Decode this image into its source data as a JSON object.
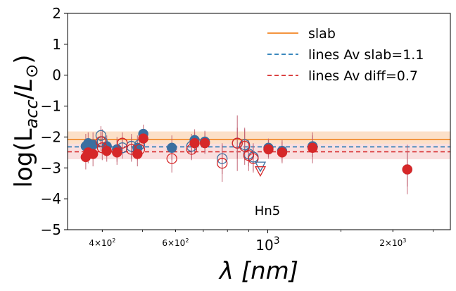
{
  "chart_data": {
    "type": "scatter",
    "x_scale": "log",
    "xlim": [
      330,
      2750
    ],
    "ylim": [
      -5,
      2
    ],
    "xlabel": "λ [nm]",
    "ylabel_parts": {
      "pre": "log(L",
      "sub": "acc",
      "mid": "/",
      "L": "L",
      "odot": "⊙",
      "close": ")"
    },
    "yticks": [
      "2",
      "1",
      "0",
      "−1",
      "−2",
      "−3",
      "−4",
      "−5"
    ],
    "ytick_values": [
      2,
      1,
      0,
      -1,
      -2,
      -3,
      -4,
      -5
    ],
    "xticks": [
      {
        "value": 400,
        "base": "4×10",
        "exp": "2",
        "major": false
      },
      {
        "value": 600,
        "base": "6×10",
        "exp": "2",
        "major": false
      },
      {
        "value": 1000,
        "base": "10",
        "exp": "3",
        "major": true
      },
      {
        "value": 2000,
        "base": "2×10",
        "exp": "3",
        "major": false
      }
    ],
    "minor_tick_values": [
      500,
      700,
      800,
      900,
      1000,
      1500,
      2500
    ],
    "annotation": "Hn5",
    "slab_value": -2.08,
    "slab_band": [
      -2.22,
      -1.82
    ],
    "lines_slab_value": -2.32,
    "lines_diff_value": -2.48,
    "diff_band": [
      -2.72,
      -2.22
    ],
    "legend": {
      "position": "top-right",
      "entries": [
        {
          "label": "slab",
          "color": "#f28522",
          "style": "solid"
        },
        {
          "label": "lines Av slab=1.1",
          "color": "#1f77b4",
          "style": "dashed"
        },
        {
          "label": "lines Av diff=0.7",
          "color": "#d62728",
          "style": "dashed"
        }
      ]
    },
    "colors": {
      "blue": "#3b6fa0",
      "red": "#d62728",
      "orange": "#f28522",
      "err": "#c06070"
    },
    "series": [
      {
        "name": "lines Av slab=1.1",
        "color": "#3b6fa0",
        "points": [
          {
            "x": 365,
            "y": -2.3,
            "err": 0.4,
            "filled": true
          },
          {
            "x": 370,
            "y": -2.2,
            "err": 0.35,
            "filled": true
          },
          {
            "x": 380,
            "y": -2.25,
            "err": 0.4,
            "filled": true
          },
          {
            "x": 397,
            "y": -1.95,
            "err": 0.3,
            "filled": false
          },
          {
            "x": 400,
            "y": -2.15,
            "err": 0.4,
            "filled": false
          },
          {
            "x": 410,
            "y": -2.3,
            "err": 0.35,
            "filled": true
          },
          {
            "x": 434,
            "y": -2.4,
            "err": 0.4,
            "filled": true
          },
          {
            "x": 447,
            "y": -2.35,
            "err": 0.35,
            "filled": false
          },
          {
            "x": 470,
            "y": -2.3,
            "err": 0.4,
            "filled": false
          },
          {
            "x": 486,
            "y": -2.35,
            "err": 0.4,
            "filled": true
          },
          {
            "x": 492,
            "y": -2.25,
            "err": 0.3,
            "filled": false
          },
          {
            "x": 502,
            "y": -1.9,
            "err": 0.3,
            "filled": true
          },
          {
            "x": 588,
            "y": -2.35,
            "err": 0.4,
            "filled": true
          },
          {
            "x": 656,
            "y": -2.3,
            "err": 0.4,
            "filled": false
          },
          {
            "x": 667,
            "y": -2.1,
            "err": 0.35,
            "filled": true
          },
          {
            "x": 706,
            "y": -2.15,
            "err": 0.35,
            "filled": true
          },
          {
            "x": 777,
            "y": -2.7,
            "err": 0.5,
            "filled": false
          },
          {
            "x": 845,
            "y": -2.2,
            "err": 0.5,
            "filled": false
          },
          {
            "x": 880,
            "y": -2.25,
            "err": 0.5,
            "filled": false
          },
          {
            "x": 900,
            "y": -2.55,
            "err": 0.4,
            "filled": false
          },
          {
            "x": 923,
            "y": -2.65,
            "err": 0.45,
            "filled": false
          },
          {
            "x": 1004,
            "y": -2.35,
            "err": 0.3,
            "filled": true
          },
          {
            "x": 1083,
            "y": -2.45,
            "err": 0.35,
            "filled": true
          },
          {
            "x": 1282,
            "y": -2.3,
            "err": 0.35,
            "filled": true
          },
          {
            "x": 2166,
            "y": -3.05,
            "err": 0.55,
            "filled": true
          }
        ]
      },
      {
        "name": "lines Av diff=0.7",
        "color": "#d62728",
        "points": [
          {
            "x": 365,
            "y": -2.65,
            "err": 0.4,
            "filled": true
          },
          {
            "x": 370,
            "y": -2.5,
            "err": 0.35,
            "filled": true
          },
          {
            "x": 380,
            "y": -2.55,
            "err": 0.4,
            "filled": true
          },
          {
            "x": 397,
            "y": -2.15,
            "err": 0.3,
            "filled": false
          },
          {
            "x": 400,
            "y": -2.35,
            "err": 0.4,
            "filled": false
          },
          {
            "x": 410,
            "y": -2.45,
            "err": 0.35,
            "filled": true
          },
          {
            "x": 434,
            "y": -2.5,
            "err": 0.4,
            "filled": true
          },
          {
            "x": 447,
            "y": -2.2,
            "err": 0.35,
            "filled": false
          },
          {
            "x": 470,
            "y": -2.4,
            "err": 0.4,
            "filled": false
          },
          {
            "x": 486,
            "y": -2.55,
            "err": 0.4,
            "filled": true
          },
          {
            "x": 492,
            "y": -2.4,
            "err": 0.3,
            "filled": false
          },
          {
            "x": 502,
            "y": -2.05,
            "err": 0.3,
            "filled": true
          },
          {
            "x": 588,
            "y": -2.7,
            "err": 0.45,
            "filled": false
          },
          {
            "x": 656,
            "y": -2.4,
            "err": 0.35,
            "filled": false
          },
          {
            "x": 667,
            "y": -2.2,
            "err": 0.35,
            "filled": true
          },
          {
            "x": 706,
            "y": -2.2,
            "err": 0.35,
            "filled": true
          },
          {
            "x": 777,
            "y": -2.85,
            "err": 0.6,
            "filled": false
          },
          {
            "x": 845,
            "y": -2.2,
            "err": 0.9,
            "filled": false
          },
          {
            "x": 880,
            "y": -2.3,
            "err": 0.6,
            "filled": false
          },
          {
            "x": 900,
            "y": -2.6,
            "err": 0.5,
            "filled": false
          },
          {
            "x": 923,
            "y": -2.7,
            "err": 0.45,
            "filled": false
          },
          {
            "x": 1004,
            "y": -2.4,
            "err": 0.3,
            "filled": true
          },
          {
            "x": 1083,
            "y": -2.5,
            "err": 0.35,
            "filled": true
          },
          {
            "x": 1282,
            "y": -2.35,
            "err": 0.5,
            "filled": true
          },
          {
            "x": 2166,
            "y": -3.05,
            "err": 0.8,
            "filled": true
          }
        ]
      }
    ],
    "upper_limits": [
      {
        "x": 960,
        "y": -2.95,
        "color": "#3b6fa0"
      },
      {
        "x": 960,
        "y": -3.1,
        "color": "#d62728"
      }
    ]
  }
}
